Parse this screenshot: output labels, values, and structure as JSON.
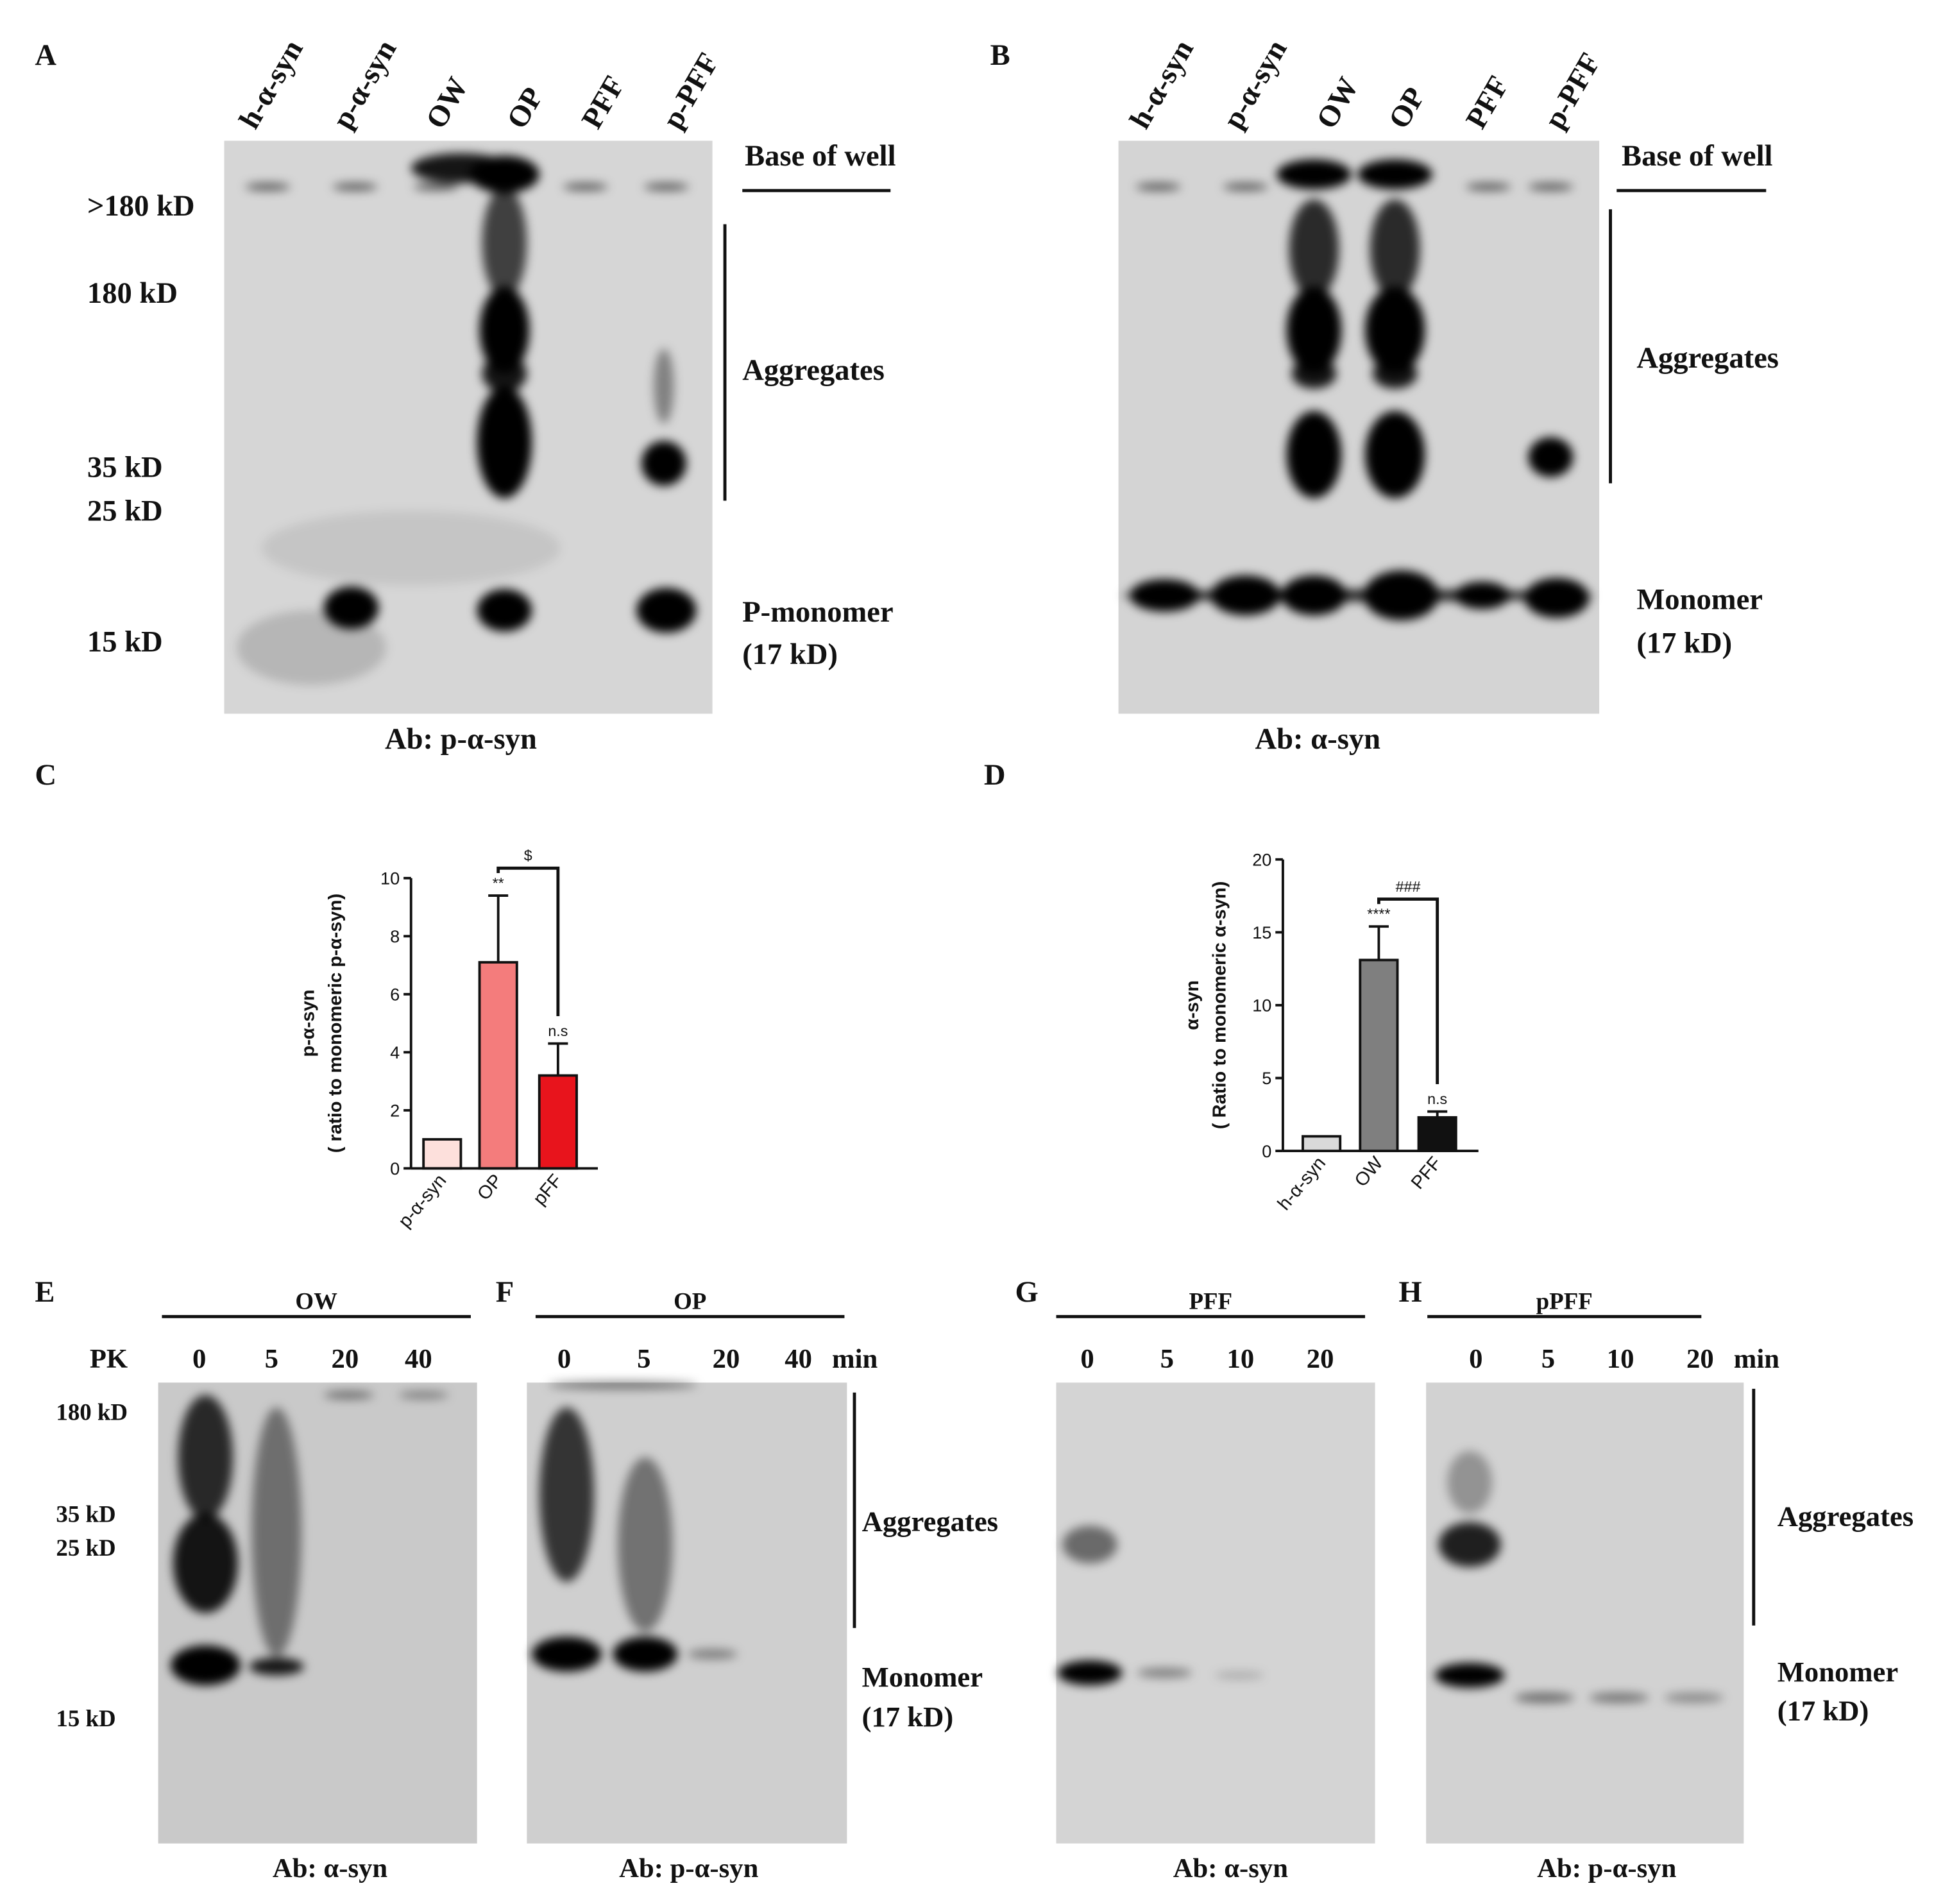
{
  "panels": {
    "A": {
      "letter": "A",
      "lanes": [
        "h-α-syn",
        "p-α-syn",
        "OW",
        "OP",
        "PFF",
        "p-PFF"
      ],
      "markers": [
        ">180 kD",
        "180 kD",
        "35 kD",
        "25 kD",
        "15 kD"
      ],
      "well": "Base of well",
      "aggregates": "Aggregates",
      "monomer": "P-monomer",
      "monomer_size": "(17 kD)",
      "antibody": "Ab: p-α-syn"
    },
    "B": {
      "letter": "B",
      "lanes": [
        "h-α-syn",
        "p-α-syn",
        "OW",
        "OP",
        "PFF",
        "p-PFF"
      ],
      "well": "Base of well",
      "aggregates": "Aggregates",
      "monomer": "Monomer",
      "monomer_size": "(17 kD)",
      "antibody": "Ab: α-syn"
    },
    "E": {
      "letter": "E",
      "group": "OW",
      "row_label": "PK",
      "times": [
        "0",
        "5",
        "20",
        "40"
      ],
      "markers": [
        "180 kD",
        "35 kD",
        "25 kD",
        "15 kD"
      ],
      "antibody": "Ab: α-syn"
    },
    "F": {
      "letter": "F",
      "group": "OP",
      "times": [
        "0",
        "5",
        "20",
        "40"
      ],
      "unit": "min",
      "aggregates": "Aggregates",
      "monomer": "Monomer",
      "monomer_size": "(17 kD)",
      "antibody": "Ab: p-α-syn"
    },
    "G": {
      "letter": "G",
      "group": "PFF",
      "times": [
        "0",
        "5",
        "10",
        "20"
      ],
      "antibody": "Ab: α-syn"
    },
    "H": {
      "letter": "H",
      "group": "pPFF",
      "times": [
        "0",
        "5",
        "10",
        "20"
      ],
      "unit": "min",
      "aggregates": "Aggregates",
      "monomer": "Monomer",
      "monomer_size": "(17 kD)",
      "antibody": "Ab: p-α-syn"
    }
  },
  "chart_data": [
    {
      "type": "bar",
      "panel": "C",
      "ylabel": [
        "p-α-syn",
        "( ratio to  monomeric p-α-syn)"
      ],
      "categories": [
        "p-α-syn",
        "OP",
        "pFF"
      ],
      "values": [
        1,
        7.1,
        3.2
      ],
      "errors": [
        0,
        2.3,
        1.1
      ],
      "colors": [
        "#fde0dc",
        "#f47c7c",
        "#e8141c"
      ],
      "significance": [
        null,
        "**",
        "n.s"
      ],
      "comparison": "$",
      "ylim": [
        0,
        10
      ],
      "yticks": [
        0,
        2,
        4,
        6,
        8,
        10
      ]
    },
    {
      "type": "bar",
      "panel": "D",
      "ylabel": [
        "α-syn",
        "( Ratio to  monomeric α-syn)"
      ],
      "categories": [
        "h-α-syn",
        "OW",
        "PFF"
      ],
      "values": [
        1,
        13.1,
        2.3
      ],
      "errors": [
        0,
        2.3,
        0.4
      ],
      "colors": [
        "#d9d9d9",
        "#7f7f7f",
        "#111111"
      ],
      "significance": [
        null,
        "****",
        "n.s"
      ],
      "comparison": "###",
      "ylim": [
        0,
        20
      ],
      "yticks": [
        0,
        5,
        10,
        15,
        20
      ]
    }
  ]
}
